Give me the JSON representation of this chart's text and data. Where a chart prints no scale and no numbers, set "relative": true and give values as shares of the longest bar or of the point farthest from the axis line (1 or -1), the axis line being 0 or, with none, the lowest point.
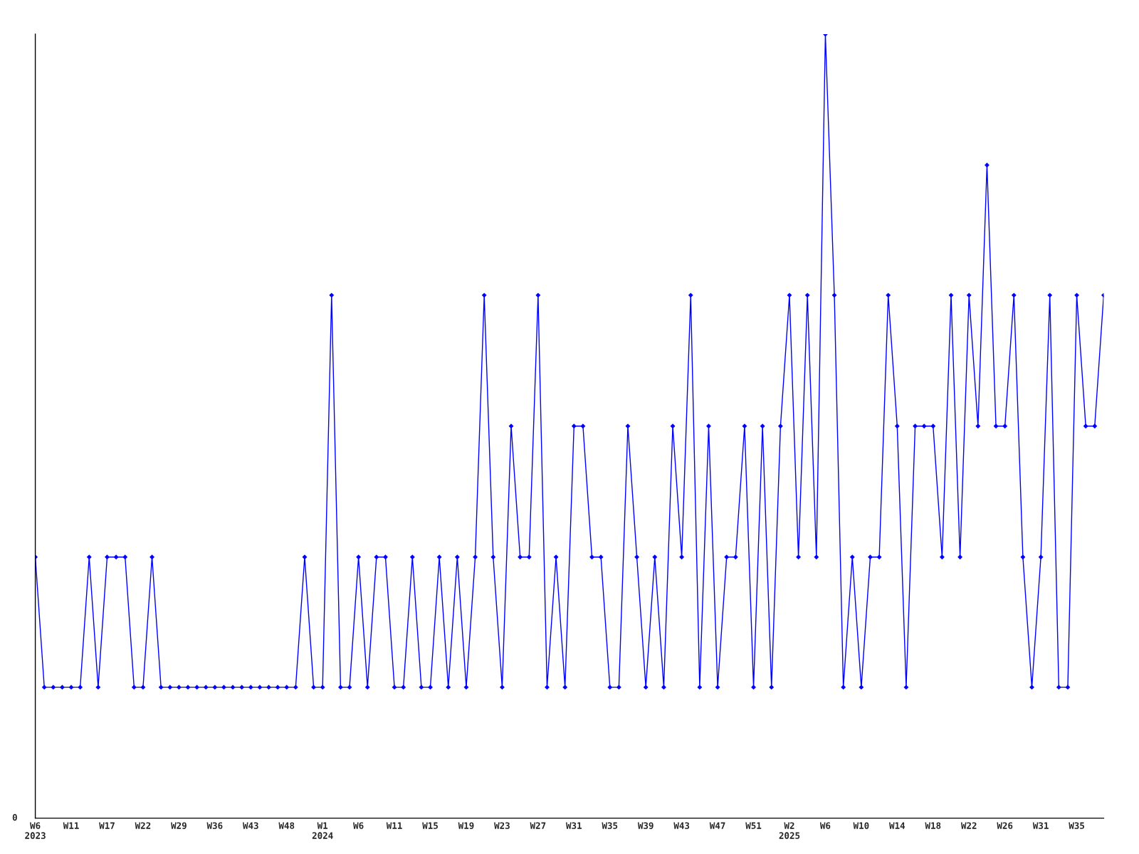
{
  "chart_data": {
    "type": "line",
    "relative": true,
    "categories": [
      "W6\n2023",
      null,
      null,
      null,
      "W11",
      null,
      null,
      null,
      "W17",
      null,
      null,
      null,
      "W22",
      null,
      null,
      null,
      "W29",
      null,
      null,
      null,
      "W36",
      null,
      null,
      null,
      "W43",
      null,
      null,
      null,
      "W48",
      null,
      null,
      null,
      "W1\n2024",
      null,
      null,
      null,
      "W6",
      null,
      null,
      null,
      "W11",
      null,
      null,
      null,
      "W15",
      null,
      null,
      null,
      "W19",
      null,
      null,
      null,
      "W23",
      null,
      null,
      null,
      "W27",
      null,
      null,
      null,
      "W31",
      null,
      null,
      null,
      "W35",
      null,
      null,
      null,
      "W39",
      null,
      null,
      null,
      "W43",
      null,
      null,
      null,
      "W47",
      null,
      null,
      null,
      "W51",
      null,
      null,
      null,
      "W2\n2025",
      null,
      null,
      null,
      "W6",
      null,
      null,
      null,
      "W10",
      null,
      null,
      null,
      "W14",
      null,
      null,
      null,
      "W18",
      null,
      null,
      null,
      "W22",
      null,
      null,
      null,
      "W26",
      null,
      null,
      null,
      "W31",
      null,
      null,
      null,
      "W35",
      null,
      null,
      null
    ],
    "series": [
      {
        "color": "#0000ff",
        "values": [
          0.333,
          0.167,
          0.167,
          0.167,
          0.167,
          0.167,
          0.333,
          0.167,
          0.333,
          0.333,
          0.333,
          0.167,
          0.167,
          0.333,
          0.167,
          0.167,
          0.167,
          0.167,
          0.167,
          0.167,
          0.167,
          0.167,
          0.167,
          0.167,
          0.167,
          0.167,
          0.167,
          0.167,
          0.167,
          0.167,
          0.333,
          0.167,
          0.167,
          0.667,
          0.167,
          0.167,
          0.333,
          0.167,
          0.333,
          0.333,
          0.167,
          0.167,
          0.333,
          0.167,
          0.167,
          0.333,
          0.167,
          0.333,
          0.167,
          0.333,
          0.667,
          0.333,
          0.167,
          0.5,
          0.333,
          0.333,
          0.667,
          0.167,
          0.333,
          0.167,
          0.5,
          0.5,
          0.333,
          0.333,
          0.167,
          0.167,
          0.5,
          0.333,
          0.167,
          0.333,
          0.167,
          0.5,
          0.333,
          0.667,
          0.167,
          0.5,
          0.167,
          0.333,
          0.333,
          0.5,
          0.167,
          0.5,
          0.167,
          0.5,
          0.667,
          0.333,
          0.667,
          0.333,
          1,
          0.667,
          0.167,
          0.333,
          0.167,
          0.333,
          0.333,
          0.667,
          0.5,
          0.167,
          0.5,
          0.5,
          0.5,
          0.333,
          0.667,
          0.333,
          0.667,
          0.5,
          0.833,
          0.5,
          0.5,
          0.667,
          0.333,
          0.167,
          0.333,
          0.667,
          0.167,
          0.167,
          0.667,
          0.5,
          0.5,
          0.667
        ]
      }
    ],
    "marker": "diamond",
    "line_style": "solid",
    "grid": false,
    "legend": false,
    "annotations": [
      "0"
    ]
  }
}
